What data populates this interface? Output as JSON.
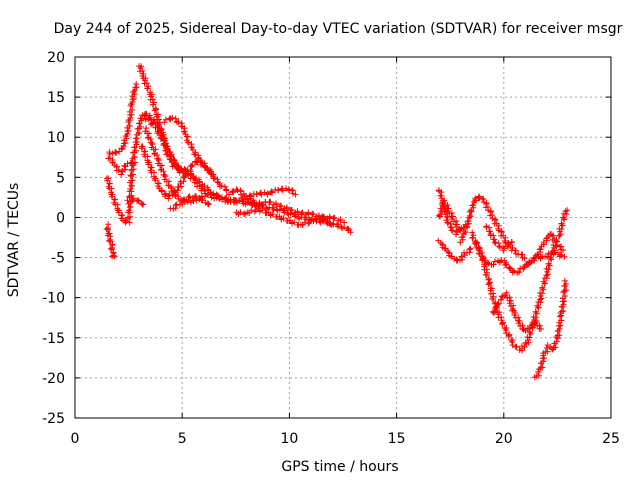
{
  "chart_data": {
    "type": "scatter",
    "title": "Day 244 of 2025, Sidereal Day-to-day VTEC variation (SDTVAR) for receiver msgr",
    "xlabel": "GPS time / hours",
    "ylabel": "SDTVAR / TECUs",
    "xlim": [
      0,
      25
    ],
    "ylim": [
      -25,
      20
    ],
    "xticks": [
      "0",
      "5",
      "10",
      "15",
      "20",
      "25"
    ],
    "yticks": [
      "-25",
      "-20",
      "-15",
      "-10",
      "-5",
      "0",
      "5",
      "10",
      "15",
      "20"
    ],
    "grid": true,
    "marker": "plus",
    "color": "#ff0000",
    "tracks": [
      {
        "x": [
          1.5,
          1.6,
          1.7,
          1.75,
          1.8
        ],
        "y": [
          -1.0,
          -2.5,
          -3.5,
          -4.5,
          -5.0
        ]
      },
      {
        "x": [
          1.5,
          1.7,
          2.0,
          2.3,
          2.5,
          2.65,
          2.75
        ],
        "y": [
          5.0,
          3.0,
          1.0,
          -0.5,
          -0.5,
          5.5,
          7.0
        ]
      },
      {
        "x": [
          1.6,
          1.9,
          2.2,
          2.4,
          2.55,
          2.65,
          2.75,
          2.85
        ],
        "y": [
          8.0,
          8.0,
          8.5,
          10.0,
          12.0,
          14.0,
          15.5,
          16.5
        ]
      },
      {
        "x": [
          1.6,
          2.0,
          2.2,
          2.4,
          2.7,
          2.9,
          3.1,
          3.3,
          3.5,
          3.7,
          4.0,
          4.3,
          4.6,
          4.9,
          5.2,
          5.6,
          6.0,
          6.4,
          6.8,
          7.2,
          7.6,
          8.0,
          8.5,
          9.0,
          9.5,
          10.0,
          10.5,
          11.0,
          11.5,
          12.0,
          12.5,
          12.9
        ],
        "y": [
          7.5,
          6.0,
          5.5,
          6.5,
          7.0,
          10.0,
          12.5,
          13.0,
          12.5,
          12.0,
          11.0,
          8.0,
          6.5,
          6.0,
          6.0,
          5.0,
          4.0,
          3.0,
          2.5,
          2.2,
          2.0,
          1.8,
          1.5,
          1.2,
          1.0,
          0.5,
          0.0,
          -0.2,
          -0.5,
          -0.8,
          -1.2,
          -1.7
        ]
      },
      {
        "x": [
          2.5,
          2.8,
          3.0,
          3.2
        ],
        "y": [
          2.0,
          2.2,
          2.0,
          1.5
        ]
      },
      {
        "x": [
          3.0,
          3.2,
          3.5,
          3.8,
          4.1,
          4.4,
          4.7,
          5.0,
          5.3,
          5.6,
          5.9,
          6.2,
          6.5
        ],
        "y": [
          19.0,
          17.5,
          15.5,
          13.0,
          10.0,
          8.0,
          6.5,
          6.0,
          5.5,
          4.5,
          3.5,
          3.0,
          2.5
        ]
      },
      {
        "x": [
          3.2,
          3.5,
          3.8,
          4.1,
          4.4,
          4.6,
          4.8,
          5.0
        ],
        "y": [
          12.5,
          12.0,
          11.0,
          9.5,
          8.0,
          7.0,
          6.0,
          5.5
        ]
      },
      {
        "x": [
          3.1,
          3.4,
          3.7,
          4.0,
          4.3,
          4.6,
          4.9,
          5.2,
          5.6,
          6.0,
          6.4
        ],
        "y": [
          9.0,
          7.0,
          5.0,
          3.5,
          2.5,
          3.0,
          4.0,
          5.5,
          7.0,
          6.5,
          5.5
        ]
      },
      {
        "x": [
          3.3,
          3.6,
          3.9,
          4.2,
          4.5,
          4.8,
          5.1,
          5.5,
          5.9,
          6.3,
          6.7,
          7.1,
          7.5,
          7.9,
          8.3,
          8.7
        ],
        "y": [
          11.0,
          9.0,
          7.0,
          5.0,
          3.5,
          2.5,
          2.0,
          2.0,
          2.5,
          3.0,
          2.5,
          2.0,
          2.0,
          2.5,
          2.0,
          1.5
        ]
      },
      {
        "x": [
          4.2,
          4.5,
          4.8,
          5.0,
          5.3,
          5.6,
          5.9,
          6.2,
          6.5,
          6.8,
          7.1
        ],
        "y": [
          12.0,
          12.5,
          12.0,
          11.5,
          9.5,
          8.0,
          7.0,
          6.0,
          5.0,
          4.0,
          3.5
        ]
      },
      {
        "x": [
          4.5,
          4.8,
          5.1,
          5.4,
          5.7,
          6.0,
          6.3
        ],
        "y": [
          1.0,
          1.5,
          2.0,
          2.5,
          2.5,
          2.0,
          1.5
        ]
      },
      {
        "x": [
          7.2,
          7.6,
          8.0,
          8.5,
          9.0,
          9.5,
          10.0,
          10.3
        ],
        "y": [
          3.0,
          3.5,
          2.5,
          3.0,
          3.0,
          3.5,
          3.5,
          3.0
        ]
      },
      {
        "x": [
          7.5,
          8.0,
          8.5,
          9.0,
          9.5,
          10.0,
          10.5,
          11.0,
          11.5,
          12.0
        ],
        "y": [
          0.5,
          0.5,
          1.0,
          0.5,
          0.0,
          -0.5,
          -1.0,
          -0.5,
          0.0,
          -1.0
        ]
      },
      {
        "x": [
          8.0,
          8.5,
          9.0,
          9.5,
          10.0,
          10.5,
          11.0,
          11.5,
          12.0,
          12.5
        ],
        "y": [
          2.0,
          1.5,
          2.0,
          1.5,
          1.0,
          0.5,
          0.5,
          0.0,
          0.0,
          -0.5
        ]
      },
      {
        "x": [
          17.0,
          17.2,
          17.4,
          17.6,
          17.8,
          18.0,
          18.2
        ],
        "y": [
          0.0,
          2.0,
          1.0,
          0.0,
          -1.0,
          -1.5,
          -1.0
        ]
      },
      {
        "x": [
          17.0,
          17.2,
          17.4,
          17.6,
          17.8,
          18.0
        ],
        "y": [
          3.5,
          1.5,
          -0.5,
          -1.5,
          -2.0,
          -1.5
        ]
      },
      {
        "x": [
          17.0,
          17.3,
          17.6,
          17.9,
          18.2,
          18.5
        ],
        "y": [
          -3.0,
          -4.0,
          -5.0,
          -5.5,
          -4.5,
          -4.0
        ]
      },
      {
        "x": [
          18.0,
          18.3,
          18.5,
          18.7,
          18.9,
          19.1,
          19.3,
          19.5,
          19.8,
          20.1,
          20.4,
          20.7,
          21.0
        ],
        "y": [
          -3.0,
          -1.0,
          1.0,
          2.5,
          2.5,
          2.0,
          1.0,
          0.0,
          -1.5,
          -3.0,
          -4.0,
          -4.5,
          -5.0
        ]
      },
      {
        "x": [
          18.5,
          18.8,
          19.1,
          19.4,
          19.7,
          20.0,
          20.3,
          20.6,
          21.0,
          21.3,
          21.6,
          21.9,
          22.2,
          22.5,
          22.8
        ],
        "y": [
          -2.0,
          -4.0,
          -5.5,
          -6.0,
          -5.5,
          -5.5,
          -6.5,
          -7.0,
          -6.0,
          -5.5,
          -5.0,
          -5.0,
          -4.5,
          -4.5,
          -5.0
        ]
      },
      {
        "x": [
          18.7,
          19.0,
          19.3,
          19.6,
          19.9,
          20.2,
          20.5,
          20.8,
          21.1,
          21.4,
          21.7,
          22.0,
          22.3,
          22.6,
          22.9
        ],
        "y": [
          -3.0,
          -5.0,
          -8.0,
          -11.0,
          -13.0,
          -14.5,
          -16.0,
          -16.5,
          -15.5,
          -13.0,
          -10.0,
          -7.0,
          -4.0,
          -2.0,
          1.0
        ]
      },
      {
        "x": [
          19.5,
          19.7,
          19.9,
          20.1,
          20.3,
          20.5,
          20.7,
          20.9,
          21.1,
          21.3,
          21.5,
          21.7
        ],
        "y": [
          -12.0,
          -11.0,
          -10.0,
          -9.5,
          -10.5,
          -12.0,
          -13.0,
          -14.0,
          -14.0,
          -13.5,
          -13.0,
          -14.0
        ]
      },
      {
        "x": [
          19.2,
          19.4,
          19.6,
          19.8,
          20.0,
          20.2,
          20.4
        ],
        "y": [
          -1.0,
          -2.0,
          -3.0,
          -3.5,
          -4.0,
          -3.5,
          -3.0
        ]
      },
      {
        "x": [
          21.5,
          21.7,
          21.9,
          22.1,
          22.3,
          22.5,
          22.7,
          22.9
        ],
        "y": [
          -20.0,
          -19.0,
          -17.0,
          -16.0,
          -16.5,
          -15.0,
          -12.0,
          -8.0
        ]
      },
      {
        "x": [
          21.0,
          21.3,
          21.6,
          21.9,
          22.2,
          22.5,
          22.8
        ],
        "y": [
          -6.0,
          -5.5,
          -4.5,
          -3.0,
          -2.0,
          -3.5,
          -4.0
        ]
      }
    ]
  }
}
